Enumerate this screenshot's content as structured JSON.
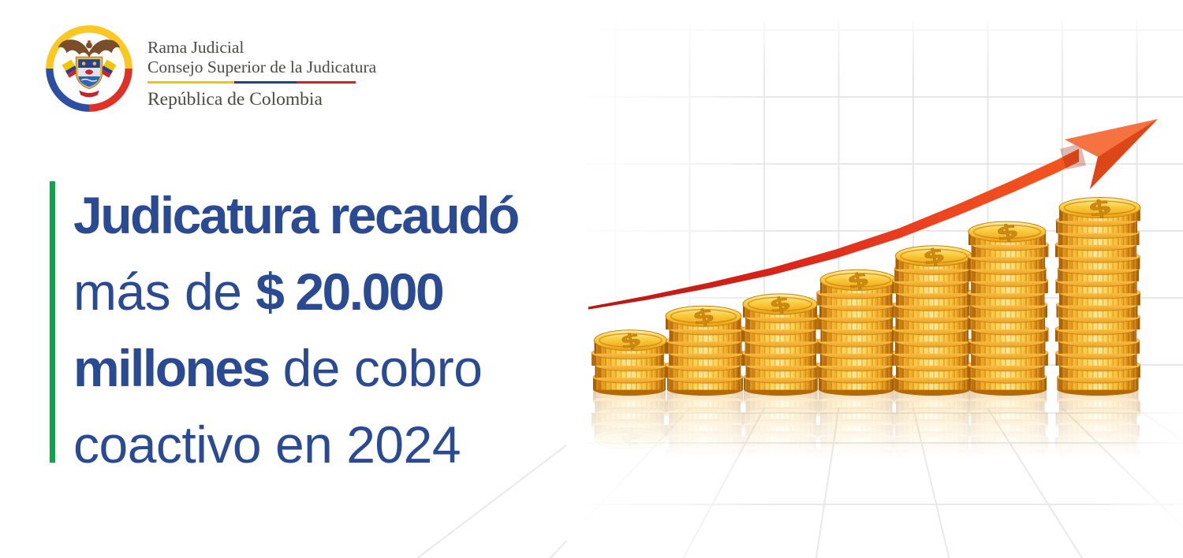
{
  "logo": {
    "institution_line1": "Rama Judicial",
    "institution_line2": "Consejo Superior de la Judicatura",
    "country": "República de Colombia",
    "divider_colors": {
      "yellow": "#F2C500",
      "blue": "#27427E",
      "red": "#E01A22"
    },
    "emblem": {
      "name": "Escudo de Colombia",
      "ring_yellow": "#FBC823",
      "ring_blue": "#2B4FA2",
      "ring_red": "#DE3226"
    }
  },
  "headline": {
    "text_color": "#2A4B93",
    "accent_bar_color": "#12A24B",
    "lines": [
      {
        "segments": [
          {
            "text": "Judicatura recaudó",
            "bold": true
          }
        ]
      },
      {
        "segments": [
          {
            "text": "más de ",
            "bold": false
          },
          {
            "text": "$ 20.000",
            "bold": true
          }
        ]
      },
      {
        "segments": [
          {
            "text": "millones",
            "bold": true
          },
          {
            "text": " de cobro",
            "bold": false
          }
        ]
      },
      {
        "segments": [
          {
            "text": "coactivo en 2024",
            "bold": false
          }
        ]
      }
    ]
  },
  "illustration": {
    "description": "Seven rising stacks of gold coins with a red growth arrow on a light grid with perspective floor",
    "dollar_sign": "$",
    "stacks": [
      {
        "coins": 4
      },
      {
        "coins": 6
      },
      {
        "coins": 7
      },
      {
        "coins": 9
      },
      {
        "coins": 11
      },
      {
        "coins": 13
      },
      {
        "coins": 15
      }
    ],
    "colors": {
      "coin_dark": "#A55B02",
      "coin_mid": "#EFA51D",
      "coin_bright": "#FFD24A",
      "coin_highlight": "#FFEA93",
      "arrow_dark": "#B61712",
      "arrow_bright": "#F4581E",
      "grid": "#E7E7E7"
    }
  }
}
